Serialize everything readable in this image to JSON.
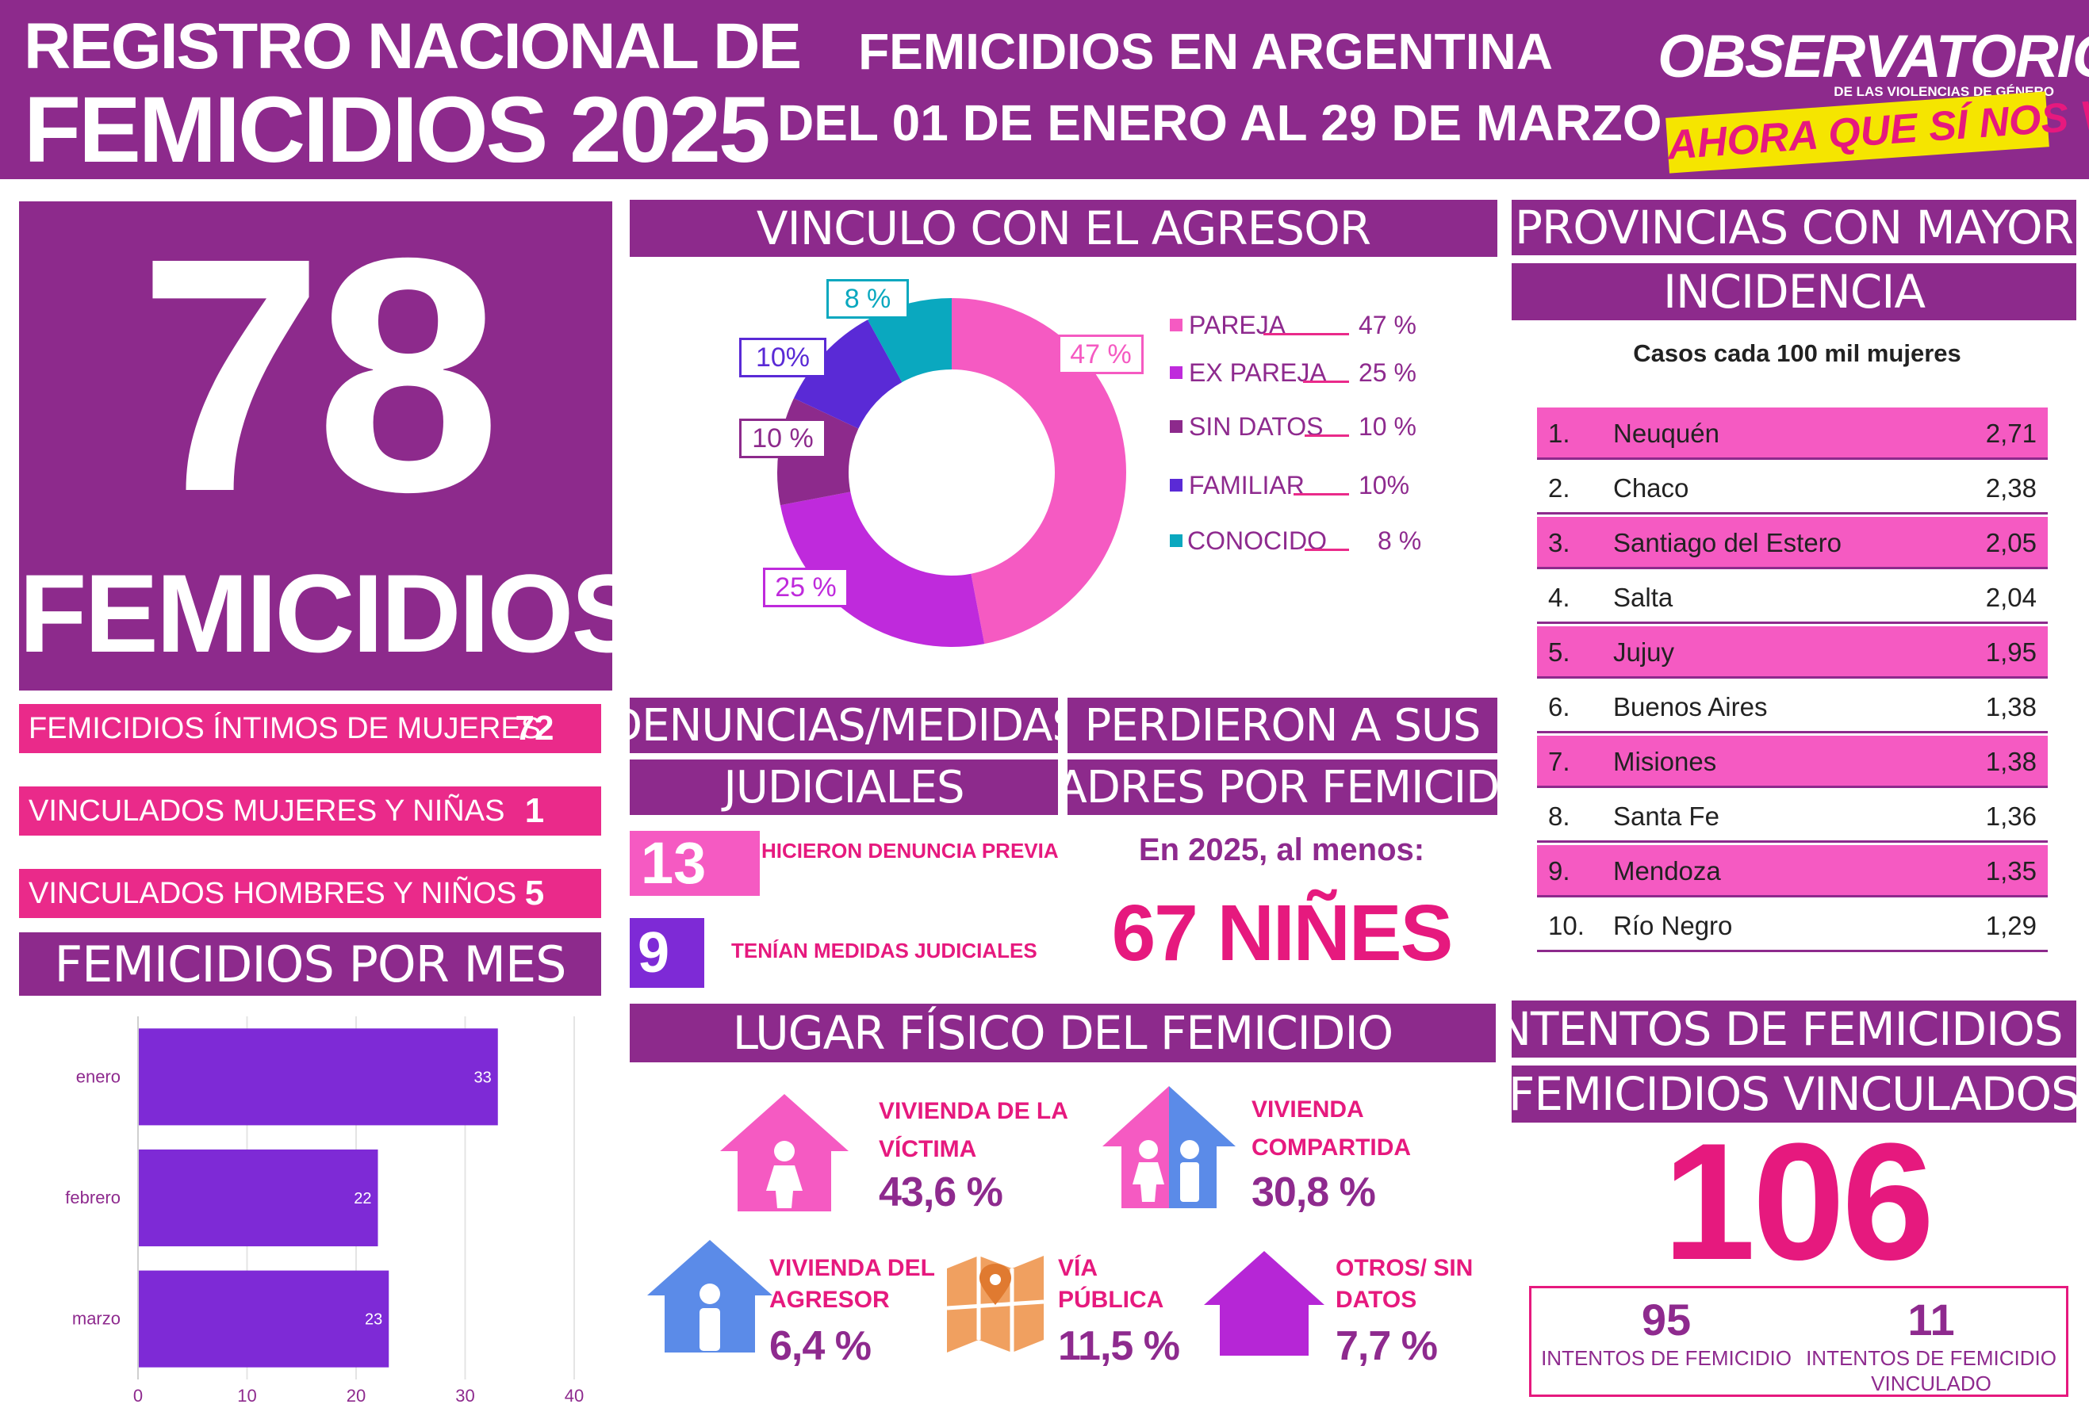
{
  "header": {
    "title_line1": "REGISTRO NACIONAL DE",
    "title_line2": "FEMICIDIOS 2025",
    "subtitle_line1": "FEMICIDIOS EN ARGENTINA",
    "subtitle_line2": "DEL 01 DE ENERO AL 29 DE MARZO",
    "logo_top": "OBSERVATORIO",
    "logo_small": "DE LAS VIOLENCIAS DE GÉNERO",
    "logo_bottom": "AHORA QUE SÍ NOS VEN"
  },
  "total": {
    "number": "78",
    "label": "FEMICIDIOS"
  },
  "categories": [
    {
      "label": "FEMICIDIOS ÍNTIMOS DE MUJERES",
      "value": "72"
    },
    {
      "label": "VINCULADOS MUJERES Y NIÑAS",
      "value": "1"
    },
    {
      "label": "VINCULADOS HOMBRES Y NIÑOS",
      "value": "5"
    }
  ],
  "sections": {
    "months": "FEMICIDIOS POR MES",
    "vinculo": "VINCULO CON EL AGRESOR",
    "provincias_1": "PROVINCIAS CON MAYOR",
    "provincias_2": "INCIDENCIA",
    "denuncias_1": "DENUNCIAS/MEDIDAS",
    "denuncias_2": "JUDICIALES",
    "perdieron_1": "PERDIERON A SUS",
    "perdieron_2": "MADRES POR FEMICIDIO",
    "lugar": "LUGAR FÍSICO DEL FEMICIDIO",
    "intentos_1": "INTENTOS DE FEMICIDIOS Y",
    "intentos_2": "FEMICIDIOS VINCULADOS"
  },
  "colors": {
    "purple": "#8d2a8c",
    "pink": "#ea2a8a",
    "hot_pink": "#e6197e",
    "light_pink": "#f55ac2",
    "violet": "#7e2ad6",
    "teal": "#0aa8bf"
  },
  "chart_data": [
    {
      "type": "bar",
      "orientation": "horizontal",
      "categories": [
        "enero",
        "febrero",
        "marzo"
      ],
      "values": [
        33,
        22,
        23
      ],
      "xlim": [
        0,
        40
      ],
      "xticks": [
        "0",
        "10",
        "20",
        "30",
        "40"
      ],
      "color": "#7e2ad6",
      "grid": true
    },
    {
      "type": "pie",
      "variant": "donut",
      "labels": [
        "PAREJA",
        "EX PAREJA",
        "SIN DATOS",
        "FAMILIAR",
        "CONOCIDO"
      ],
      "values": [
        47,
        25,
        10,
        10,
        8
      ],
      "slice_labels": [
        "47 %",
        "25 %",
        "10 %",
        "10%",
        "8 %"
      ],
      "legend_values": [
        "47 %",
        "25 %",
        "10 %",
        "10%",
        "8 %"
      ],
      "colors": [
        "#f55ac2",
        "#bf2adc",
        "#8d2a8c",
        "#5a2ad6",
        "#0aa8bf"
      ],
      "legend_position": "right"
    },
    {
      "type": "table",
      "subtitle": "Casos cada 100 mil mujeres",
      "rows": [
        {
          "rank": "1.",
          "name": "Neuquén",
          "value": "2,71"
        },
        {
          "rank": "2.",
          "name": "Chaco",
          "value": "2,38"
        },
        {
          "rank": "3.",
          "name": "Santiago del Estero",
          "value": "2,05"
        },
        {
          "rank": "4.",
          "name": "Salta",
          "value": "2,04"
        },
        {
          "rank": "5.",
          "name": "Jujuy",
          "value": "1,95"
        },
        {
          "rank": "6.",
          "name": "Buenos Aires",
          "value": "1,38"
        },
        {
          "rank": "7.",
          "name": "Misiones",
          "value": "1,38"
        },
        {
          "rank": "8.",
          "name": "Santa Fe",
          "value": "1,36"
        },
        {
          "rank": "9.",
          "name": "Mendoza",
          "value": "1,35"
        },
        {
          "rank": "10.",
          "name": "Río Negro",
          "value": "1,29"
        }
      ]
    }
  ],
  "denuncias": [
    {
      "value": "13",
      "label": "HICIERON DENUNCIA PREVIA"
    },
    {
      "value": "9",
      "label": "TENÍAN MEDIDAS JUDICIALES"
    }
  ],
  "orphans": {
    "sub": "En 2025, al menos:",
    "number": "67 NIÑES"
  },
  "places": [
    {
      "l1": "VIVIENDA DE LA",
      "l2": "VÍCTIMA",
      "pct": "43,6 %",
      "icon": "house-woman-icon"
    },
    {
      "l1": "VIVIENDA",
      "l2": "COMPARTIDA",
      "pct": "30,8 %",
      "icon": "house-couple-icon"
    },
    {
      "l1": "VIVIENDA DEL",
      "l2": "AGRESOR",
      "pct": "6,4 %",
      "icon": "house-man-icon"
    },
    {
      "l1": "VÍA",
      "l2": "PÚBLICA",
      "pct": "11,5 %",
      "icon": "map-pin-icon"
    },
    {
      "l1": "OTROS/ SIN",
      "l2": "DATOS",
      "pct": "7,7 %",
      "icon": "house-icon"
    }
  ],
  "intentos": {
    "total": "106",
    "a_value": "95",
    "a_label": "INTENTOS DE FEMICIDIO",
    "b_value": "11",
    "b_label_1": "INTENTOS DE FEMICIDIO",
    "b_label_2": "VINCULADO"
  }
}
